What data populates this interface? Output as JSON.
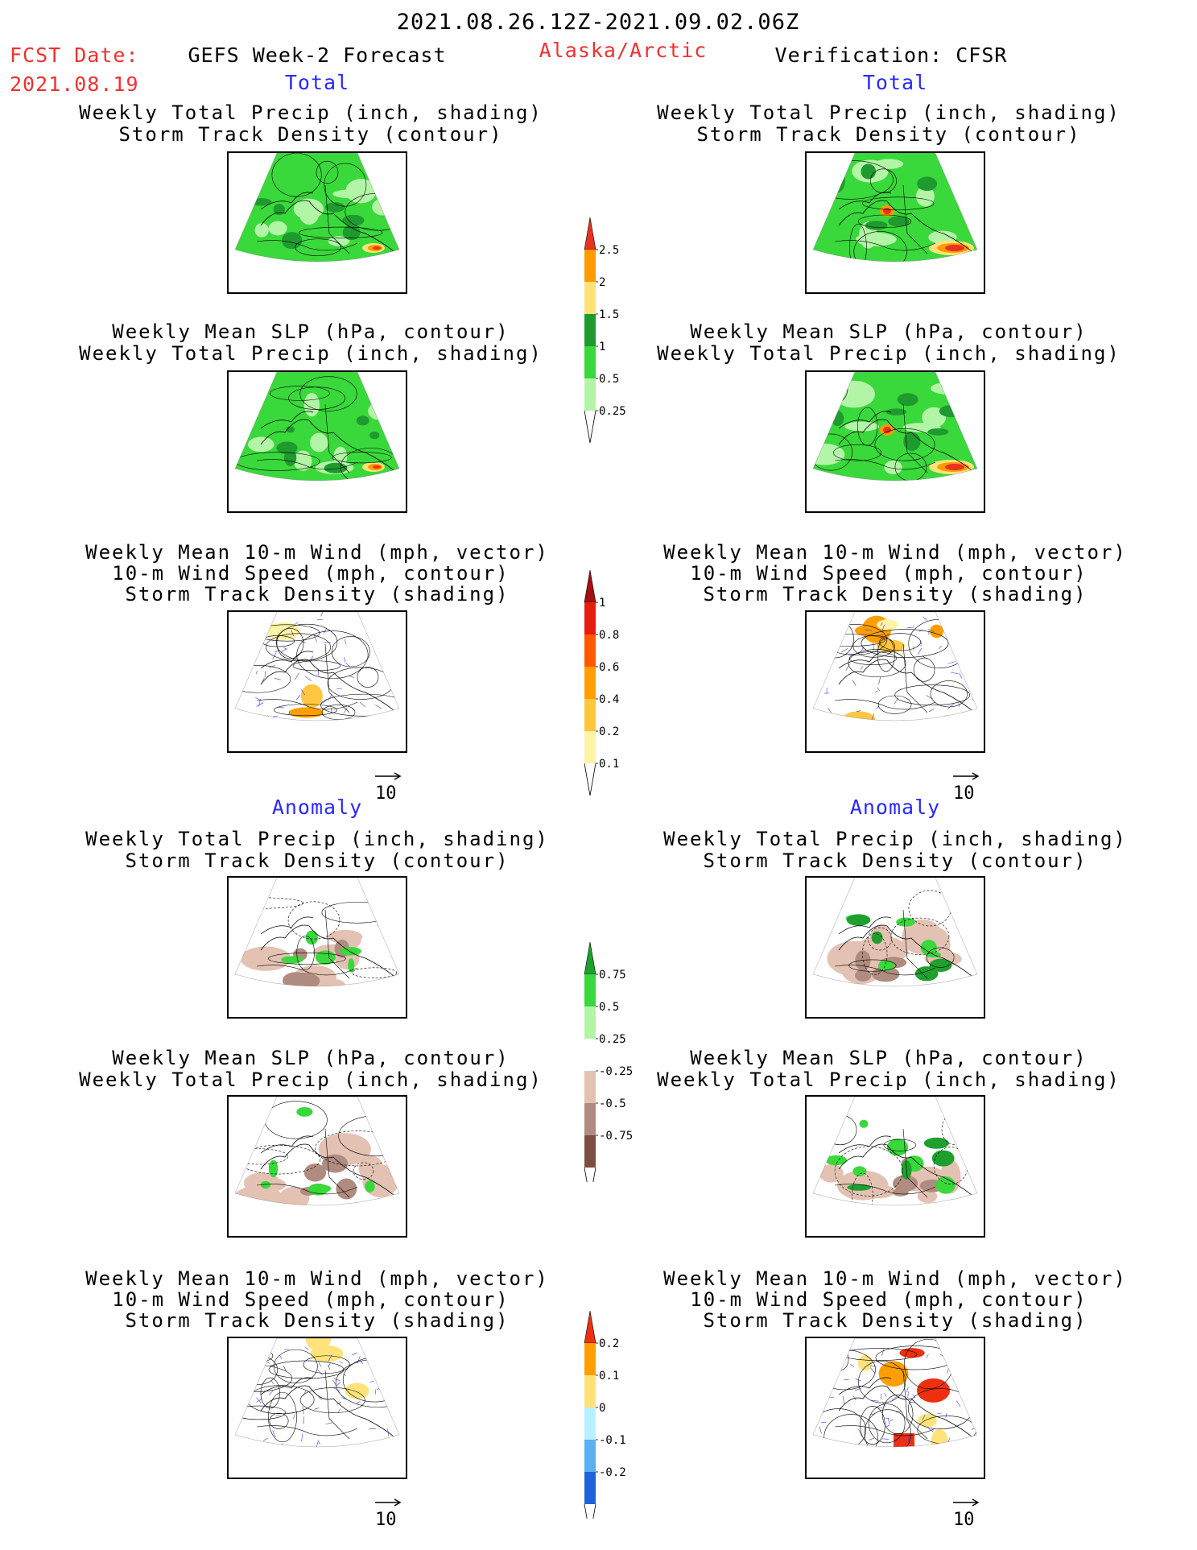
{
  "header": {
    "date_range": "2021.08.26.12Z-2021.09.02.06Z",
    "fcst_label": "FCST Date:",
    "fcst_date": "2021.08.19",
    "left_title": "GEFS Week-2 Forecast",
    "region": "Alaska/Arctic",
    "right_title": "Verification: CFSR"
  },
  "sections": {
    "total": "Total",
    "anomaly": "Anomaly"
  },
  "panel_titles": {
    "precip_track": [
      "Weekly Total Precip (inch, shading)",
      "Storm Track Density (contour)"
    ],
    "slp_precip": [
      "Weekly Mean SLP (hPa, contour)",
      "Weekly Total Precip (inch, shading)"
    ],
    "wind_track": [
      "Weekly Mean 10-m Wind (mph, vector)",
      "10-m Wind Speed (mph, contour)",
      "Storm Track Density (shading)"
    ]
  },
  "vector_ref": "10",
  "colorbars": {
    "precip_total": {
      "labels": [
        "2.5",
        "2",
        "1.5",
        "1",
        "0.5",
        "0.25"
      ],
      "colors": [
        "#e8321e",
        "#ff9a00",
        "#ffe37a",
        "#1f9a2e",
        "#39d83b",
        "#b3f5a7"
      ]
    },
    "track_total": {
      "labels": [
        "1",
        "0.8",
        "0.6",
        "0.4",
        "0.2",
        "0.1"
      ],
      "colors": [
        "#a51010",
        "#e61e10",
        "#ff5a00",
        "#ff9e00",
        "#ffc640",
        "#fff3a6"
      ]
    },
    "precip_anom": {
      "labels": [
        "0.75",
        "0.5",
        "0.25",
        "-0.25",
        "-0.5",
        "-0.75"
      ],
      "colors": [
        "#1fa02e",
        "#39d83b",
        "#b3f5a7",
        "#ffffff",
        "#e3c2b4",
        "#b08c80",
        "#7a4e40"
      ]
    },
    "track_anom": {
      "labels": [
        "0.2",
        "0.1",
        "0",
        "-0.1",
        "-0.2"
      ],
      "colors": [
        "#ee3010",
        "#ff9e00",
        "#ffe37a",
        "#b8f0ff",
        "#5ab0f0",
        "#1e64d8"
      ]
    }
  }
}
